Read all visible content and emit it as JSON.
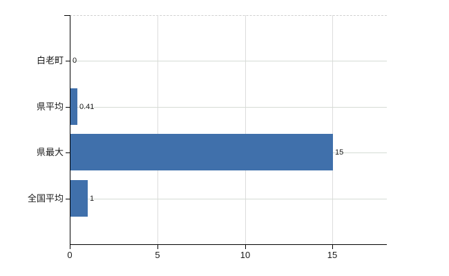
{
  "chart_data": {
    "type": "bar",
    "orientation": "horizontal",
    "title": "",
    "categories": [
      "白老町",
      "県平均",
      "県最大",
      "全国平均"
    ],
    "values": [
      0,
      0.41,
      15,
      1
    ],
    "value_labels": [
      "0",
      "0.41",
      "15",
      "1"
    ],
    "x_tick_labels": [
      "0",
      "5",
      "10",
      "15"
    ],
    "x_tick_values": [
      0,
      5,
      10,
      15
    ],
    "xlim": [
      0,
      18.1
    ],
    "grid": true,
    "legend": false,
    "colors": {
      "bar": "#4070ab",
      "axis": "#000000",
      "grid_vertical": "#dcdcdc",
      "grid_horizontal": "#d5dbd4",
      "plot_top_border": "#cfcfcf",
      "text": "#1a1a1a",
      "background": "#ffffff"
    }
  }
}
